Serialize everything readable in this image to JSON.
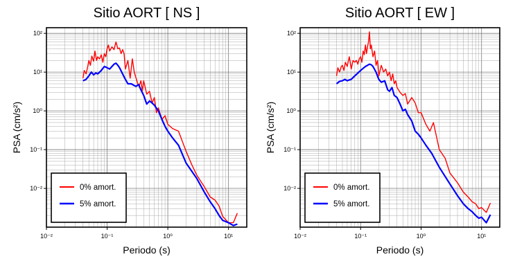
{
  "chart_data": [
    {
      "type": "line",
      "title": "Sitio AORT [ NS ]",
      "xlabel": "Periodo (s)",
      "ylabel": "PSA (cm/s²)",
      "x_scale": "log",
      "y_scale": "log",
      "xlim": [
        0.01,
        20
      ],
      "ylim": [
        0.001,
        140
      ],
      "x_ticks": [
        "10⁻²",
        "10⁻¹",
        "10⁰",
        "10¹"
      ],
      "y_ticks": [
        "10²",
        "10¹",
        "10⁰",
        "10⁻¹",
        "10⁻²"
      ],
      "grid": true,
      "legend_position": "bottom-left",
      "series": [
        {
          "name": "0% amort.",
          "color": "#ff0000",
          "x": [
            0.04,
            0.042,
            0.045,
            0.048,
            0.05,
            0.053,
            0.056,
            0.06,
            0.063,
            0.067,
            0.07,
            0.075,
            0.08,
            0.085,
            0.09,
            0.095,
            0.1,
            0.105,
            0.11,
            0.12,
            0.13,
            0.14,
            0.15,
            0.16,
            0.17,
            0.18,
            0.19,
            0.2,
            0.22,
            0.24,
            0.26,
            0.28,
            0.3,
            0.32,
            0.34,
            0.36,
            0.38,
            0.4,
            0.45,
            0.5,
            0.55,
            0.6,
            0.65,
            0.7,
            0.8,
            0.9,
            1.0,
            1.2,
            1.5,
            2.0,
            2.5,
            3.0,
            4.0,
            5.0,
            6.0,
            7.0,
            8.0,
            10.0,
            12.0,
            14.0
          ],
          "y": [
            7,
            11,
            9,
            14,
            20,
            15,
            26,
            19,
            35,
            20,
            25,
            22,
            28,
            18,
            30,
            25,
            40,
            50,
            35,
            45,
            38,
            60,
            40,
            42,
            30,
            38,
            30,
            12,
            20,
            7,
            22,
            10,
            7,
            5,
            4.5,
            6,
            3.3,
            6,
            2.7,
            3.2,
            1.6,
            2.2,
            0.9,
            1.2,
            0.6,
            0.75,
            0.45,
            0.35,
            0.3,
            0.09,
            0.04,
            0.022,
            0.011,
            0.006,
            0.005,
            0.0035,
            0.0019,
            0.0013,
            0.0013,
            0.0023
          ]
        },
        {
          "name": "5% amort.",
          "color": "#0000ff",
          "x": [
            0.04,
            0.045,
            0.05,
            0.055,
            0.06,
            0.065,
            0.07,
            0.08,
            0.09,
            0.1,
            0.11,
            0.12,
            0.13,
            0.14,
            0.15,
            0.16,
            0.18,
            0.2,
            0.22,
            0.25,
            0.28,
            0.3,
            0.33,
            0.36,
            0.4,
            0.45,
            0.5,
            0.55,
            0.6,
            0.7,
            0.8,
            0.9,
            1.0,
            1.2,
            1.5,
            2.0,
            3.0,
            4.0,
            5.0,
            6.0,
            7.0,
            8.0,
            10.0,
            12.0,
            14.0
          ],
          "y": [
            6,
            6.5,
            8,
            10,
            8.5,
            9.5,
            9,
            11,
            14,
            13,
            12,
            14,
            16,
            17,
            15,
            13,
            9,
            6.5,
            5,
            5,
            4.5,
            4.3,
            4.8,
            3.5,
            2.5,
            1.5,
            1.8,
            1.6,
            1.4,
            1.0,
            0.6,
            0.4,
            0.3,
            0.2,
            0.13,
            0.045,
            0.018,
            0.008,
            0.0045,
            0.003,
            0.002,
            0.0015,
            0.0013,
            0.0011,
            0.0012
          ]
        }
      ]
    },
    {
      "type": "line",
      "title": "Sitio AORT [ EW ]",
      "xlabel": "Periodo (s)",
      "ylabel": "PSA (cm/s²)",
      "x_scale": "log",
      "y_scale": "log",
      "xlim": [
        0.01,
        20
      ],
      "ylim": [
        0.001,
        140
      ],
      "x_ticks": [
        "10⁻²",
        "10⁻¹",
        "10⁰",
        "10¹"
      ],
      "y_ticks": [
        "10²",
        "10¹",
        "10⁰",
        "10⁻¹",
        "10⁻²"
      ],
      "grid": true,
      "legend_position": "bottom-left",
      "series": [
        {
          "name": "0% amort.",
          "color": "#ff0000",
          "x": [
            0.04,
            0.042,
            0.045,
            0.048,
            0.05,
            0.053,
            0.056,
            0.06,
            0.065,
            0.07,
            0.075,
            0.08,
            0.085,
            0.09,
            0.095,
            0.1,
            0.105,
            0.11,
            0.115,
            0.12,
            0.125,
            0.13,
            0.135,
            0.14,
            0.145,
            0.15,
            0.16,
            0.17,
            0.18,
            0.19,
            0.2,
            0.22,
            0.24,
            0.26,
            0.28,
            0.3,
            0.32,
            0.34,
            0.36,
            0.38,
            0.4,
            0.45,
            0.5,
            0.55,
            0.6,
            0.7,
            0.8,
            0.9,
            1.0,
            1.2,
            1.4,
            1.6,
            2.0,
            2.5,
            3.0,
            4.0,
            5.0,
            6.0,
            7.0,
            8.0,
            9.0,
            10.0,
            12.0,
            14.0
          ],
          "y": [
            8,
            13,
            10,
            14,
            15,
            11,
            18,
            14,
            25,
            12,
            20,
            18,
            20,
            16,
            22,
            25,
            18,
            35,
            28,
            50,
            30,
            45,
            60,
            110,
            40,
            50,
            25,
            35,
            15,
            20,
            8,
            15,
            10,
            12,
            8,
            10,
            6,
            9,
            5,
            6,
            4,
            3,
            2.5,
            2.8,
            1.5,
            2.2,
            1.6,
            0.9,
            0.9,
            0.45,
            0.3,
            0.5,
            0.1,
            0.06,
            0.025,
            0.014,
            0.008,
            0.006,
            0.0045,
            0.004,
            0.003,
            0.0032,
            0.0024,
            0.0042
          ]
        },
        {
          "name": "5% amort.",
          "color": "#0000ff",
          "x": [
            0.04,
            0.045,
            0.05,
            0.055,
            0.06,
            0.065,
            0.07,
            0.08,
            0.09,
            0.1,
            0.11,
            0.12,
            0.13,
            0.14,
            0.15,
            0.16,
            0.18,
            0.2,
            0.22,
            0.25,
            0.28,
            0.3,
            0.33,
            0.36,
            0.4,
            0.45,
            0.5,
            0.55,
            0.6,
            0.7,
            0.8,
            0.9,
            1.0,
            1.2,
            1.5,
            2.0,
            3.0,
            4.0,
            5.0,
            6.0,
            7.0,
            8.0,
            9.0,
            10.0,
            12.0,
            14.0
          ],
          "y": [
            5,
            5.8,
            6,
            6.5,
            6,
            6.3,
            6.5,
            8,
            9.5,
            11,
            12.5,
            14,
            15,
            16,
            15.5,
            14,
            10,
            6.5,
            5.5,
            6,
            3.5,
            3.2,
            4,
            2.5,
            2.2,
            1.5,
            1.0,
            1.1,
            0.8,
            0.55,
            0.3,
            0.25,
            0.2,
            0.13,
            0.08,
            0.035,
            0.013,
            0.0065,
            0.004,
            0.003,
            0.0025,
            0.002,
            0.0017,
            0.0018,
            0.0013,
            0.0021
          ]
        }
      ]
    }
  ]
}
